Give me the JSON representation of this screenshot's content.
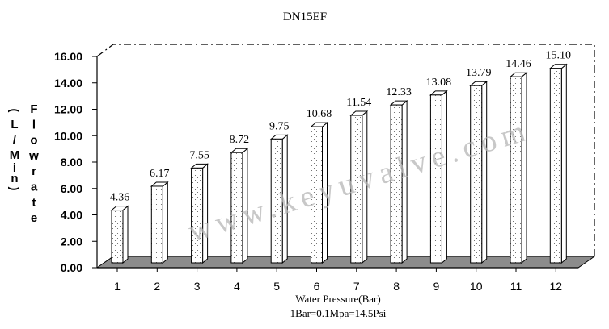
{
  "chart_data": {
    "type": "bar",
    "title": "DN15EF",
    "categories": [
      "1",
      "2",
      "3",
      "4",
      "5",
      "6",
      "7",
      "8",
      "9",
      "10",
      "11",
      "12"
    ],
    "values": [
      4.36,
      6.17,
      7.55,
      8.72,
      9.75,
      10.68,
      11.54,
      12.33,
      13.08,
      13.79,
      14.46,
      15.1
    ],
    "value_labels": [
      "4.36",
      "6.17",
      "7.55",
      "8.72",
      "9.75",
      "10.68",
      "11.54",
      "12.33",
      "13.08",
      "13.79",
      "14.46",
      "15.10"
    ],
    "yticks": [
      "0.00",
      "2.00",
      "4.00",
      "6.00",
      "8.00",
      "10.00",
      "12.00",
      "14.00",
      "16.00"
    ],
    "ylim": [
      0,
      16
    ],
    "xlabel": "Water Pressure(Bar)",
    "xlabel_note": "1Bar=0.1Mpa=14.5Psi",
    "ylabel_unit": "(L/Min)",
    "ylabel_name": "Flowrate",
    "grid": false,
    "style": "3d-column",
    "watermark": "www.keyuvalve.com"
  }
}
